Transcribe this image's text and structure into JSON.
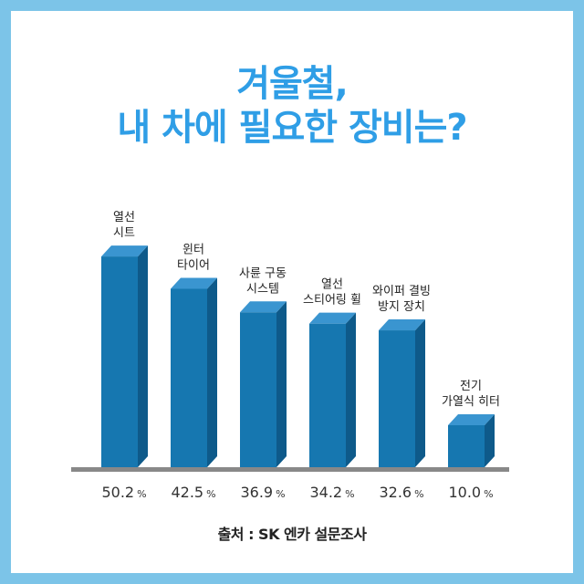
{
  "title_line1": "겨울철,",
  "title_line2": "내 차에 필요한 장비는?",
  "source": "출처 : SK 엔카 설문조사",
  "colors": {
    "frame": "#7cc4e8",
    "title": "#2f9ee6",
    "bar_front": "#1677b0",
    "bar_side": "#0e5a8a",
    "bar_top": "#3a95d0",
    "baseline": "#888888"
  },
  "chart_data": {
    "type": "bar",
    "categories": [
      [
        "열선",
        "시트"
      ],
      [
        "윈터",
        "타이어"
      ],
      [
        "사륜 구동",
        "시스템"
      ],
      [
        "열선",
        "스티어링 휠"
      ],
      [
        "와이퍼 결빙",
        "방지 장치"
      ],
      [
        "전기",
        "가열식 히터"
      ]
    ],
    "values": [
      50.2,
      42.5,
      36.9,
      34.2,
      32.6,
      10.0
    ],
    "value_labels": [
      "50.2",
      "42.5",
      "36.9",
      "34.2",
      "32.6",
      "10.0"
    ],
    "unit": "%"
  }
}
